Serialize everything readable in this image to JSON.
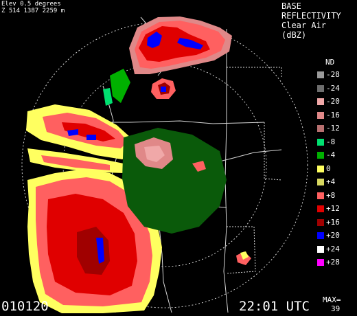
{
  "header": {
    "elevation": "Elev 0.5 degrees",
    "site_info": "Z 514 1387 2259 m"
  },
  "product": {
    "line1": "BASE",
    "line2": "REFLECTIVITY",
    "line3": "Clear Air",
    "line4": "(dBZ)"
  },
  "legend": {
    "nd_label": "ND",
    "items": [
      {
        "label": "-28",
        "color": "#9a9a9a"
      },
      {
        "label": "-24",
        "color": "#6e6e6e"
      },
      {
        "label": "-20",
        "color": "#f0a8a8"
      },
      {
        "label": "-16",
        "color": "#e08888"
      },
      {
        "label": "-12",
        "color": "#b87070"
      },
      {
        "label": "-8",
        "color": "#00e070"
      },
      {
        "label": "-4",
        "color": "#00b000"
      },
      {
        "label": "0",
        "color": "#ffff60"
      },
      {
        "label": "+4",
        "color": "#d8d860"
      },
      {
        "label": "+8",
        "color": "#ff6060"
      },
      {
        "label": "+12",
        "color": "#e00000"
      },
      {
        "label": "+16",
        "color": "#a00000"
      },
      {
        "label": "+20",
        "color": "#0000ff"
      },
      {
        "label": "+24",
        "color": "#ffffff"
      },
      {
        "label": "+28",
        "color": "#ff00ff"
      }
    ]
  },
  "footer": {
    "date": "010120",
    "time": "22:01 UTC",
    "max_label": "MAX=",
    "max_value": "39"
  }
}
